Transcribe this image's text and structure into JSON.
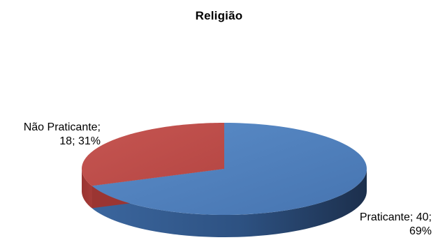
{
  "chart_data": {
    "type": "pie",
    "style": "3d",
    "title": "Religião",
    "slices": [
      {
        "name": "Praticante",
        "value": 40,
        "percent": 69,
        "color": "#4a7ebb",
        "label_lines": [
          "Praticante; 40;",
          "69%"
        ]
      },
      {
        "name": "Não Praticante",
        "value": 18,
        "percent": 31,
        "color": "#be4b48",
        "label_lines": [
          "Não Praticante;",
          "18; 31%"
        ]
      }
    ]
  }
}
